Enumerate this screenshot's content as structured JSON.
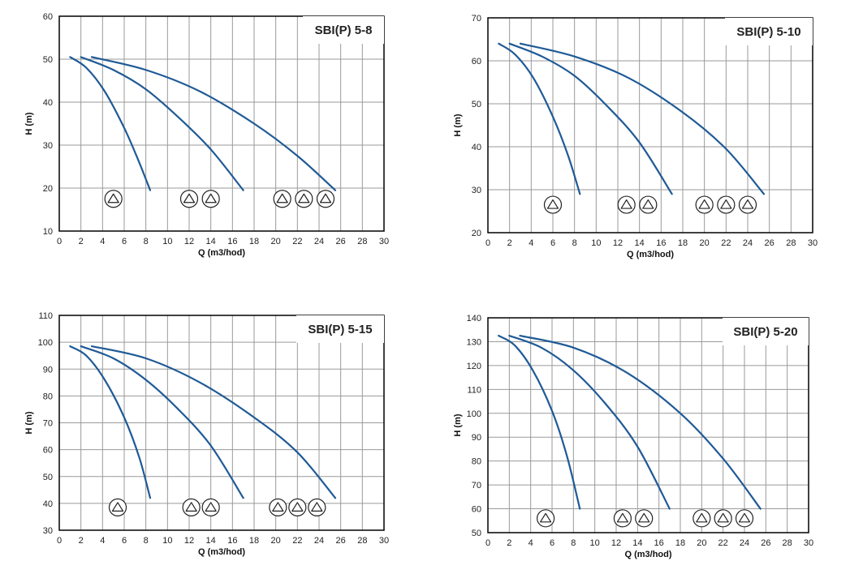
{
  "style": {
    "curve_color": "#1f5a96",
    "grid_color": "#9a9a9a",
    "border_color": "#000000",
    "title_box_fill": "#ffffff"
  },
  "chart_data": [
    {
      "type": "line",
      "title": "SBI(P) 5-8",
      "xlabel": "Q (m3/hod)",
      "ylabel": "H (m)",
      "xlim": [
        0,
        30
      ],
      "ylim": [
        10,
        60
      ],
      "xticks": [
        0,
        2,
        4,
        6,
        8,
        10,
        12,
        14,
        16,
        18,
        20,
        22,
        24,
        26,
        28,
        30
      ],
      "yticks": [
        10,
        20,
        30,
        40,
        50,
        60
      ],
      "grid": true,
      "series": [
        {
          "x": [
            1.0,
            2.5,
            4.2,
            6.0,
            7.3,
            8.4
          ],
          "y": [
            50.5,
            48.0,
            42.5,
            34.0,
            26.5,
            19.5
          ]
        },
        {
          "x": [
            2.0,
            5.0,
            8.0,
            11.0,
            14.0,
            17.0
          ],
          "y": [
            50.5,
            47.5,
            43.0,
            36.5,
            29.0,
            19.5
          ]
        },
        {
          "x": [
            3.0,
            8.0,
            13.0,
            18.0,
            22.0,
            25.5
          ],
          "y": [
            50.5,
            47.5,
            42.5,
            35.0,
            27.5,
            19.5
          ]
        }
      ],
      "pump_marker_groups": [
        {
          "x": [
            5.0
          ],
          "y": 17.5
        },
        {
          "x": [
            12.0,
            14.0
          ],
          "y": 17.5
        },
        {
          "x": [
            20.6,
            22.6,
            24.6
          ],
          "y": 17.5
        }
      ]
    },
    {
      "type": "line",
      "title": "SBI(P) 5-10",
      "xlabel": "Q (m3/hod)",
      "ylabel": "H (m)",
      "xlim": [
        0,
        30
      ],
      "ylim": [
        20,
        70
      ],
      "xticks": [
        0,
        2,
        4,
        6,
        8,
        10,
        12,
        14,
        16,
        18,
        20,
        22,
        24,
        26,
        28,
        30
      ],
      "yticks": [
        20,
        30,
        40,
        50,
        60,
        70
      ],
      "grid": true,
      "series": [
        {
          "x": [
            1.0,
            2.5,
            4.2,
            6.0,
            7.4,
            8.5
          ],
          "y": [
            64.0,
            61.5,
            56.0,
            47.0,
            38.0,
            29.0
          ]
        },
        {
          "x": [
            2.0,
            5.0,
            8.0,
            11.0,
            14.0,
            17.0
          ],
          "y": [
            64.0,
            61.0,
            56.5,
            49.5,
            41.0,
            29.0
          ]
        },
        {
          "x": [
            3.0,
            8.0,
            13.0,
            18.0,
            22.0,
            25.5
          ],
          "y": [
            64.0,
            61.0,
            56.0,
            48.0,
            39.5,
            29.0
          ]
        }
      ],
      "pump_marker_groups": [
        {
          "x": [
            6.0
          ],
          "y": 26.5
        },
        {
          "x": [
            12.8,
            14.8
          ],
          "y": 26.5
        },
        {
          "x": [
            20.0,
            22.0,
            24.0
          ],
          "y": 26.5
        }
      ]
    },
    {
      "type": "line",
      "title": "SBI(P) 5-15",
      "xlabel": "Q (m3/hod)",
      "ylabel": "H (m)",
      "xlim": [
        0,
        30
      ],
      "ylim": [
        30,
        110
      ],
      "xticks": [
        0,
        2,
        4,
        6,
        8,
        10,
        12,
        14,
        16,
        18,
        20,
        22,
        24,
        26,
        28,
        30
      ],
      "yticks": [
        30,
        40,
        50,
        60,
        70,
        80,
        90,
        100,
        110
      ],
      "grid": true,
      "series": [
        {
          "x": [
            1.0,
            2.5,
            4.2,
            6.0,
            7.4,
            8.4
          ],
          "y": [
            98.5,
            95.0,
            86.0,
            72.0,
            57.0,
            42.0
          ]
        },
        {
          "x": [
            2.0,
            5.0,
            8.0,
            11.0,
            14.0,
            17.0
          ],
          "y": [
            98.5,
            94.0,
            86.0,
            75.0,
            61.5,
            42.0
          ]
        },
        {
          "x": [
            3.0,
            8.0,
            13.0,
            18.0,
            22.0,
            25.5
          ],
          "y": [
            98.5,
            94.0,
            85.0,
            72.0,
            59.0,
            42.0
          ]
        }
      ],
      "pump_marker_groups": [
        {
          "x": [
            5.4
          ],
          "y": 38.5
        },
        {
          "x": [
            12.2,
            14.0
          ],
          "y": 38.5
        },
        {
          "x": [
            20.2,
            22.0,
            23.8
          ],
          "y": 38.5
        }
      ]
    },
    {
      "type": "line",
      "title": "SBI(P) 5-20",
      "xlabel": "Q (m3/hod)",
      "ylabel": "H (m)",
      "xlim": [
        0,
        30
      ],
      "ylim": [
        50,
        140
      ],
      "xticks": [
        0,
        2,
        4,
        6,
        8,
        10,
        12,
        14,
        16,
        18,
        20,
        22,
        24,
        26,
        28,
        30
      ],
      "yticks": [
        50,
        60,
        70,
        80,
        90,
        100,
        110,
        120,
        130,
        140
      ],
      "grid": true,
      "series": [
        {
          "x": [
            1.0,
            2.5,
            4.2,
            6.0,
            7.4,
            8.6
          ],
          "y": [
            132.5,
            128.5,
            118.0,
            101.0,
            82.0,
            60.0
          ]
        },
        {
          "x": [
            2.0,
            5.0,
            8.0,
            11.0,
            14.0,
            17.0
          ],
          "y": [
            132.5,
            127.5,
            118.0,
            104.0,
            86.0,
            60.0
          ]
        },
        {
          "x": [
            3.0,
            8.0,
            13.0,
            18.0,
            22.0,
            25.5
          ],
          "y": [
            132.5,
            127.5,
            117.0,
            100.0,
            81.0,
            60.0
          ]
        }
      ],
      "pump_marker_groups": [
        {
          "x": [
            5.4
          ],
          "y": 56.0
        },
        {
          "x": [
            12.6,
            14.6
          ],
          "y": 56.0
        },
        {
          "x": [
            20.0,
            22.0,
            24.0
          ],
          "y": 56.0
        }
      ]
    }
  ]
}
